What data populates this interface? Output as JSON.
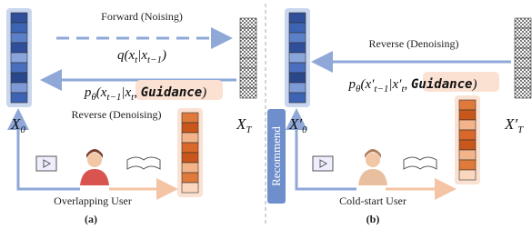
{
  "left": {
    "forward_label": "Forward (Noising)",
    "forward_formula": [
      "q(x",
      "t",
      "|x",
      "t−1",
      ")"
    ],
    "reverse_formula": [
      "p",
      "θ",
      "(x",
      "t−1",
      "|x",
      "t",
      ", ",
      "Guidance",
      ")"
    ],
    "reverse_label": "Reverse (Denoising)",
    "x0": [
      "X",
      "0"
    ],
    "xT": [
      "X",
      "T"
    ],
    "user_label": "Overlapping User",
    "caption": "(a)"
  },
  "right": {
    "reverse_label": "Reverse (Denoising)",
    "reverse_formula": [
      "p",
      "θ",
      "(x′",
      "t−1",
      "|x′",
      "t",
      ", ",
      "Guidance",
      ")"
    ],
    "x0": [
      "X′",
      "0"
    ],
    "xT": [
      "X′",
      "T"
    ],
    "recommend": "Recommend",
    "user_label": "Cold-start User",
    "caption": "(b)"
  }
}
